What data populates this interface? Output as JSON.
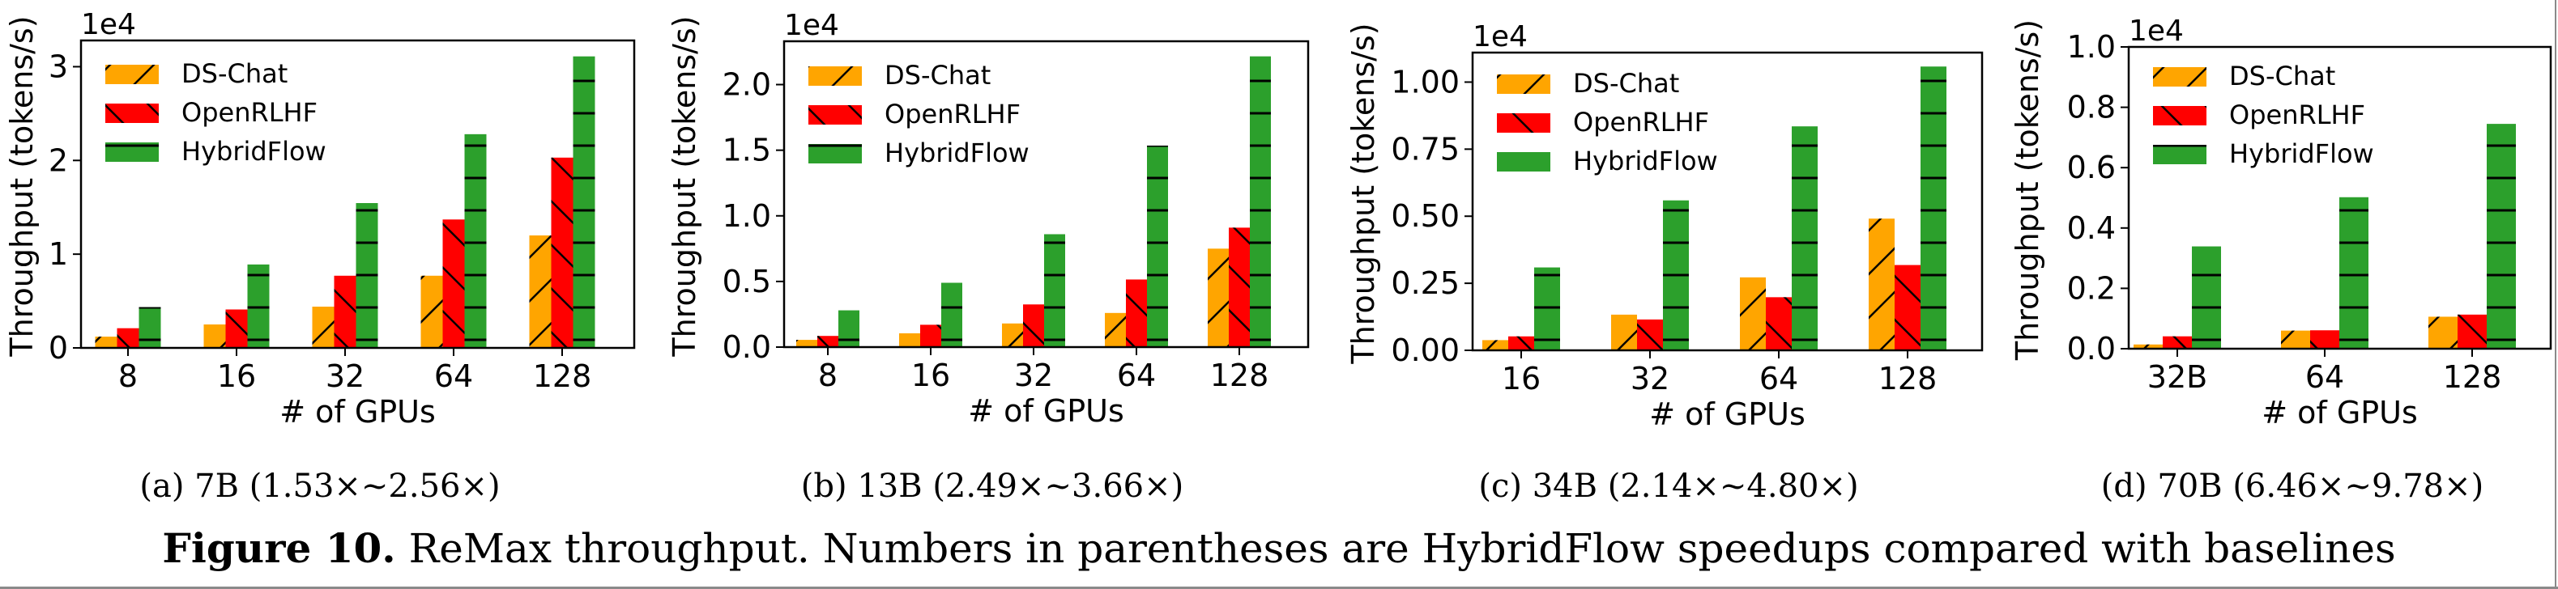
{
  "figure": {
    "caption_label": "Figure 10.",
    "caption_text": " ReMax throughput. Numbers in parentheses are HybridFlow speedups compared with baselines"
  },
  "colors": {
    "DS-Chat": "#ffa500",
    "OpenRLHF": "#ff0000",
    "HybridFlow": "#2ca02c",
    "hatch": "#000000"
  },
  "chart_data": [
    {
      "type": "bar",
      "id": "a",
      "subcaption": "(a)  7B (1.53×~2.56×)",
      "title": "",
      "xlabel": "# of GPUs",
      "ylabel": "Throughput (tokens/s)",
      "y_scale_label": "1e4",
      "categories": [
        "8",
        "16",
        "32",
        "64",
        "128"
      ],
      "ylim": [
        0,
        3.28
      ],
      "yticks": [
        0,
        1,
        2,
        3
      ],
      "ytick_labels": [
        "0",
        "1",
        "2",
        "3"
      ],
      "legend": [
        "DS-Chat",
        "OpenRLHF",
        "HybridFlow"
      ],
      "legend_position": "top-left",
      "grid": false,
      "series": [
        {
          "name": "DS-Chat",
          "hatch": "/",
          "values": [
            0.12,
            0.25,
            0.44,
            0.77,
            1.2
          ]
        },
        {
          "name": "OpenRLHF",
          "hatch": "\\",
          "values": [
            0.21,
            0.41,
            0.77,
            1.37,
            2.03
          ]
        },
        {
          "name": "HybridFlow",
          "hatch": "-",
          "values": [
            0.435,
            0.89,
            1.545,
            2.28,
            3.11
          ]
        }
      ]
    },
    {
      "type": "bar",
      "id": "b",
      "subcaption": "(b)  13B (2.49×~3.66×)",
      "title": "",
      "xlabel": "# of GPUs",
      "ylabel": "Throughput (tokens/s)",
      "y_scale_label": "1e4",
      "categories": [
        "8",
        "16",
        "32",
        "64",
        "128"
      ],
      "ylim": [
        0,
        2.33
      ],
      "yticks": [
        0,
        0.5,
        1.0,
        1.5,
        2.0
      ],
      "ytick_labels": [
        "0.0",
        "0.5",
        "1.0",
        "1.5",
        "2.0"
      ],
      "legend": [
        "DS-Chat",
        "OpenRLHF",
        "HybridFlow"
      ],
      "legend_position": "top-left",
      "grid": false,
      "series": [
        {
          "name": "DS-Chat",
          "hatch": "/",
          "values": [
            0.055,
            0.105,
            0.18,
            0.26,
            0.75
          ]
        },
        {
          "name": "OpenRLHF",
          "hatch": "\\",
          "values": [
            0.085,
            0.17,
            0.325,
            0.515,
            0.91
          ]
        },
        {
          "name": "HybridFlow",
          "hatch": "-",
          "values": [
            0.28,
            0.49,
            0.86,
            1.535,
            2.215
          ]
        }
      ]
    },
    {
      "type": "bar",
      "id": "c",
      "subcaption": "(c)  34B (2.14×~4.80×)",
      "title": "",
      "xlabel": "# of GPUs",
      "ylabel": "Throughput (tokens/s)",
      "y_scale_label": "1e4",
      "categories": [
        "16",
        "32",
        "64",
        "128"
      ],
      "ylim": [
        0,
        1.11
      ],
      "yticks": [
        0,
        0.25,
        0.5,
        0.75,
        1.0
      ],
      "ytick_labels": [
        "0.00",
        "0.25",
        "0.50",
        "0.75",
        "1.00"
      ],
      "legend": [
        "DS-Chat",
        "OpenRLHF",
        "HybridFlow"
      ],
      "legend_position": "top-left",
      "grid": false,
      "series": [
        {
          "name": "DS-Chat",
          "hatch": "/",
          "values": [
            0.038,
            0.133,
            0.272,
            0.491
          ]
        },
        {
          "name": "OpenRLHF",
          "hatch": "\\",
          "values": [
            0.052,
            0.115,
            0.198,
            0.318
          ]
        },
        {
          "name": "HybridFlow",
          "hatch": "-",
          "values": [
            0.309,
            0.559,
            0.835,
            1.058
          ]
        }
      ]
    },
    {
      "type": "bar",
      "id": "d",
      "subcaption": "(d)  70B (6.46×~9.78×)",
      "title": "",
      "xlabel": "# of GPUs",
      "ylabel": "Throughput (tokens/s)",
      "y_scale_label": "1e4",
      "categories": [
        "32B",
        "64",
        "128"
      ],
      "ylim": [
        0,
        1.0
      ],
      "yticks": [
        0,
        0.2,
        0.4,
        0.6,
        0.8,
        1.0
      ],
      "ytick_labels": [
        "0.0",
        "0.2",
        "0.4",
        "0.6",
        "0.8",
        "1.0"
      ],
      "legend": [
        "DS-Chat",
        "OpenRLHF",
        "HybridFlow"
      ],
      "legend_position": "top-left",
      "grid": false,
      "series": [
        {
          "name": "DS-Chat",
          "hatch": "/",
          "values": [
            0.014,
            0.06,
            0.106
          ]
        },
        {
          "name": "OpenRLHF",
          "hatch": "\\",
          "values": [
            0.041,
            0.061,
            0.113
          ]
        },
        {
          "name": "HybridFlow",
          "hatch": "-",
          "values": [
            0.339,
            0.502,
            0.745
          ]
        }
      ]
    }
  ]
}
